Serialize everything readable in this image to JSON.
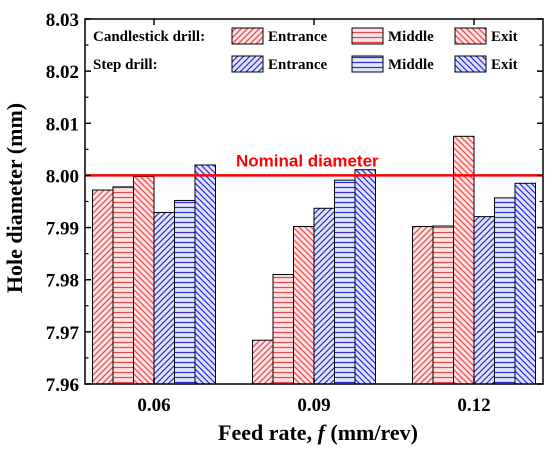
{
  "chart_data": {
    "type": "bar",
    "xlabel_parts": [
      "Feed rate, ",
      "f",
      " (mm/rev)"
    ],
    "ylabel": "Hole diameter (mm)",
    "categories": [
      "0.06",
      "0.09",
      "0.12"
    ],
    "ylim": [
      7.96,
      8.03
    ],
    "yticks": [
      "7.96",
      "7.97",
      "7.98",
      "7.99",
      "8.00",
      "8.01",
      "8.02",
      "8.03"
    ],
    "grid": false,
    "legend_position": "top",
    "groups": [
      {
        "label": "Candlestick drill:",
        "color": "#e8474c",
        "fill": "#fde2e2"
      },
      {
        "label": "Step drill:",
        "color": "#2b2bd6",
        "fill": "#e2e6fd"
      }
    ],
    "series": [
      {
        "name": "Entrance",
        "group": 0,
        "pattern": "hatch-fwd",
        "values": [
          7.9972,
          7.9684,
          7.9902
        ]
      },
      {
        "name": "Middle",
        "group": 0,
        "pattern": "hatch-horiz",
        "values": [
          7.9978,
          7.981,
          7.9903
        ]
      },
      {
        "name": "Exit",
        "group": 0,
        "pattern": "hatch-back",
        "values": [
          7.9998,
          7.9902,
          8.0075
        ]
      },
      {
        "name": "Entrance",
        "group": 1,
        "pattern": "hatch-fwd",
        "values": [
          7.9929,
          7.9937,
          7.9921
        ]
      },
      {
        "name": "Middle",
        "group": 1,
        "pattern": "hatch-horiz",
        "values": [
          7.9952,
          7.9991,
          7.9957
        ]
      },
      {
        "name": "Exit",
        "group": 1,
        "pattern": "hatch-back",
        "values": [
          8.002,
          8.0011,
          7.9985
        ]
      }
    ],
    "reference_line": {
      "value": 8.0,
      "label": "Nominal diameter",
      "color": "#ff0000"
    }
  }
}
